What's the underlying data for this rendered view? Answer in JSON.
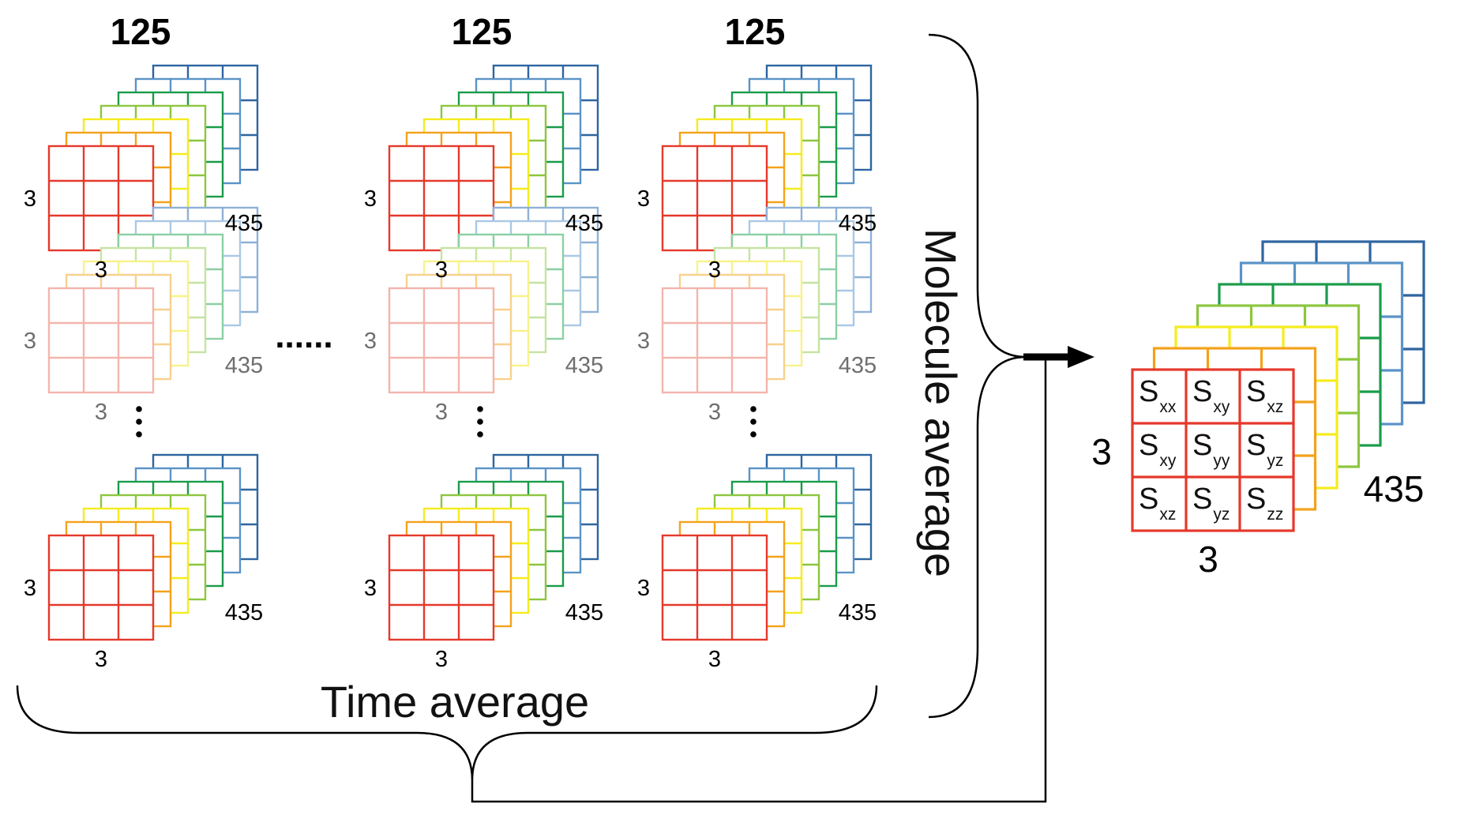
{
  "colors": {
    "layers": [
      "#e5392b",
      "#f4a21b",
      "#f5ec1d",
      "#8cc63f",
      "#1a9c4a",
      "#5b93c7",
      "#2e65a0"
    ],
    "faded_layers": [
      "#f3b5ad",
      "#f8d08c",
      "#f8f28b",
      "#c5e3a2",
      "#8ccfa3",
      "#aac8e5",
      "#8eb1d6"
    ],
    "ink": "#000000"
  },
  "frames": [
    {
      "count_label": "125"
    },
    {
      "count_label": "125"
    },
    {
      "count_label": "125"
    }
  ],
  "stack_labels": {
    "rows": "3",
    "cols": "3",
    "depth": "435"
  },
  "between_frames": "......",
  "vertical_ellipsis": "⋮",
  "brace_labels": {
    "time": "Time average",
    "molecule": "Molecule average"
  },
  "result": {
    "rows": "3",
    "cols": "3",
    "depth": "435",
    "cells": [
      [
        {
          "main": "S",
          "sub": "xx"
        },
        {
          "main": "S",
          "sub": "xy"
        },
        {
          "main": "S",
          "sub": "xz"
        }
      ],
      [
        {
          "main": "S",
          "sub": "xy"
        },
        {
          "main": "S",
          "sub": "yy"
        },
        {
          "main": "S",
          "sub": "yz"
        }
      ],
      [
        {
          "main": "S",
          "sub": "xz"
        },
        {
          "main": "S",
          "sub": "yz"
        },
        {
          "main": "S",
          "sub": "zz"
        }
      ]
    ]
  }
}
